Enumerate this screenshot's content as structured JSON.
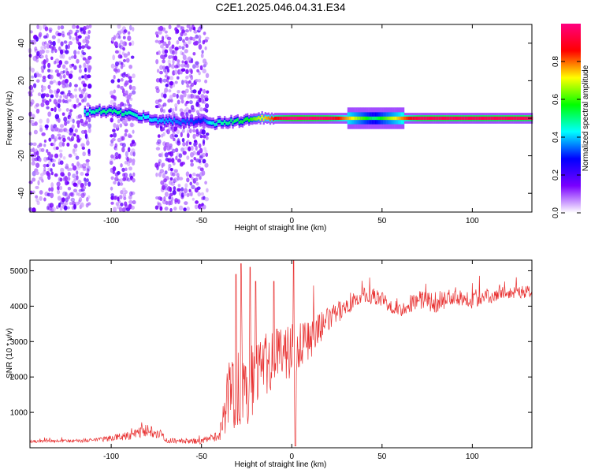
{
  "title": "C2E1.2025.046.04.31.E34",
  "chart_data": [
    {
      "type": "heatmap",
      "xlabel": "Height of straight line (km)",
      "ylabel": "Frequency (Hz)",
      "xlim": [
        -145,
        133
      ],
      "ylim": [
        -50,
        50
      ],
      "xticks": [
        -100,
        -50,
        0,
        50,
        100
      ],
      "yticks": [
        40,
        20,
        0,
        -20,
        -40
      ],
      "colorbar": {
        "label": "Normalized spectral amplitude",
        "range": [
          0,
          1
        ],
        "ticks": [
          0.0,
          0.2,
          0.4,
          0.6,
          0.8
        ],
        "tick_labels": [
          "0.0",
          "0.2",
          "0.4",
          "0.6",
          "0.8"
        ],
        "colormap": [
          "#ffffff",
          "#7a00ff",
          "#0000ff",
          "#00ffff",
          "#00ff00",
          "#ffff00",
          "#ff0000",
          "#ff0080"
        ]
      },
      "noise_bands_km": [
        [
          -145,
          -112
        ],
        [
          -100,
          -88
        ],
        [
          -75,
          -47
        ]
      ],
      "ridge": [
        {
          "x": -115,
          "f": 3,
          "amp": 0.45
        },
        {
          "x": -105,
          "f": 4,
          "amp": 0.5
        },
        {
          "x": -95,
          "f": 3,
          "amp": 0.5
        },
        {
          "x": -85,
          "f": 1,
          "amp": 0.45
        },
        {
          "x": -75,
          "f": -1,
          "amp": 0.4
        },
        {
          "x": -62,
          "f": -2,
          "amp": 0.35
        },
        {
          "x": -50,
          "f": -1,
          "amp": 0.3
        },
        {
          "x": -45,
          "f": -3,
          "amp": 0.45
        },
        {
          "x": -35,
          "f": -2,
          "amp": 0.5
        },
        {
          "x": -25,
          "f": -1,
          "amp": 0.55
        },
        {
          "x": -15,
          "f": 0,
          "amp": 0.75
        },
        {
          "x": -5,
          "f": 0,
          "amp": 0.95
        },
        {
          "x": 0,
          "f": 0,
          "amp": 1.0
        },
        {
          "x": 20,
          "f": 0,
          "amp": 0.95
        },
        {
          "x": 45,
          "f": 0,
          "amp": 0.5
        },
        {
          "x": 70,
          "f": 0,
          "amp": 0.95
        },
        {
          "x": 100,
          "f": 0,
          "amp": 0.95
        },
        {
          "x": 133,
          "f": 0,
          "amp": 0.95
        }
      ]
    },
    {
      "type": "line",
      "xlabel": "Height of straight line (km)",
      "ylabel": "SNR (10 * v/v)",
      "xlim": [
        -145,
        133
      ],
      "ylim": [
        0,
        5300
      ],
      "xticks": [
        -100,
        -50,
        0,
        50,
        100
      ],
      "yticks": [
        1000,
        2000,
        3000,
        4000,
        5000
      ],
      "line_color": "#e83030",
      "envelope": [
        {
          "x": -145,
          "base": 180,
          "spread": 80
        },
        {
          "x": -110,
          "base": 200,
          "spread": 100
        },
        {
          "x": -90,
          "base": 350,
          "spread": 250
        },
        {
          "x": -80,
          "base": 500,
          "spread": 350
        },
        {
          "x": -72,
          "base": 400,
          "spread": 300
        },
        {
          "x": -70,
          "base": 200,
          "spread": 150
        },
        {
          "x": -50,
          "base": 180,
          "spread": 150
        },
        {
          "x": -40,
          "base": 350,
          "spread": 300
        },
        {
          "x": -35,
          "base": 1500,
          "spread": 2000
        },
        {
          "x": -30,
          "base": 1800,
          "spread": 2500
        },
        {
          "x": -25,
          "base": 1700,
          "spread": 2500
        },
        {
          "x": -20,
          "base": 2000,
          "spread": 2000
        },
        {
          "x": -15,
          "base": 2300,
          "spread": 1800
        },
        {
          "x": -10,
          "base": 2500,
          "spread": 1700
        },
        {
          "x": 0,
          "base": 2800,
          "spread": 1600
        },
        {
          "x": 10,
          "base": 3100,
          "spread": 1200
        },
        {
          "x": 20,
          "base": 3600,
          "spread": 700
        },
        {
          "x": 30,
          "base": 4000,
          "spread": 500
        },
        {
          "x": 40,
          "base": 4300,
          "spread": 450
        },
        {
          "x": 50,
          "base": 4200,
          "spread": 450
        },
        {
          "x": 60,
          "base": 3900,
          "spread": 500
        },
        {
          "x": 70,
          "base": 4200,
          "spread": 500
        },
        {
          "x": 80,
          "base": 4100,
          "spread": 600
        },
        {
          "x": 90,
          "base": 4300,
          "spread": 500
        },
        {
          "x": 100,
          "base": 4200,
          "spread": 550
        },
        {
          "x": 110,
          "base": 4300,
          "spread": 450
        },
        {
          "x": 120,
          "base": 4400,
          "spread": 350
        },
        {
          "x": 133,
          "base": 4400,
          "spread": 350
        }
      ],
      "spikes": [
        {
          "x": -31,
          "y": 4900
        },
        {
          "x": -28,
          "y": 5200
        },
        {
          "x": -23,
          "y": 5100
        },
        {
          "x": -20,
          "y": 4700
        },
        {
          "x": -10,
          "y": 4700
        },
        {
          "x": 1,
          "y": 5300
        },
        {
          "x": 2,
          "y": 50
        }
      ]
    }
  ]
}
